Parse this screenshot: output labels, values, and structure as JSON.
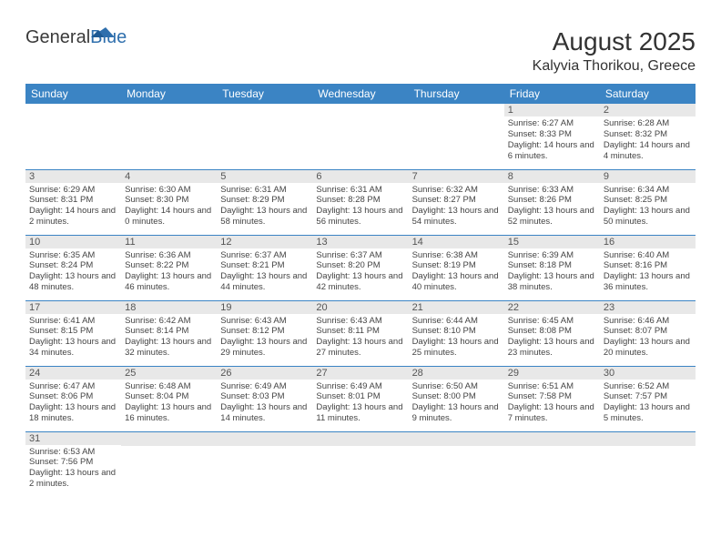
{
  "logo": {
    "part1": "General",
    "part2": "Blue"
  },
  "title": "August 2025",
  "location": "Kalyvia Thorikou, Greece",
  "header_bg": "#3b84c4",
  "header_fg": "#ffffff",
  "daynum_bg": "#e8e8e8",
  "border_color": "#3b84c4",
  "weekdays": [
    "Sunday",
    "Monday",
    "Tuesday",
    "Wednesday",
    "Thursday",
    "Friday",
    "Saturday"
  ],
  "weeks": [
    [
      {
        "n": "",
        "sr": "",
        "ss": "",
        "dl": ""
      },
      {
        "n": "",
        "sr": "",
        "ss": "",
        "dl": ""
      },
      {
        "n": "",
        "sr": "",
        "ss": "",
        "dl": ""
      },
      {
        "n": "",
        "sr": "",
        "ss": "",
        "dl": ""
      },
      {
        "n": "",
        "sr": "",
        "ss": "",
        "dl": ""
      },
      {
        "n": "1",
        "sr": "Sunrise: 6:27 AM",
        "ss": "Sunset: 8:33 PM",
        "dl": "Daylight: 14 hours and 6 minutes."
      },
      {
        "n": "2",
        "sr": "Sunrise: 6:28 AM",
        "ss": "Sunset: 8:32 PM",
        "dl": "Daylight: 14 hours and 4 minutes."
      }
    ],
    [
      {
        "n": "3",
        "sr": "Sunrise: 6:29 AM",
        "ss": "Sunset: 8:31 PM",
        "dl": "Daylight: 14 hours and 2 minutes."
      },
      {
        "n": "4",
        "sr": "Sunrise: 6:30 AM",
        "ss": "Sunset: 8:30 PM",
        "dl": "Daylight: 14 hours and 0 minutes."
      },
      {
        "n": "5",
        "sr": "Sunrise: 6:31 AM",
        "ss": "Sunset: 8:29 PM",
        "dl": "Daylight: 13 hours and 58 minutes."
      },
      {
        "n": "6",
        "sr": "Sunrise: 6:31 AM",
        "ss": "Sunset: 8:28 PM",
        "dl": "Daylight: 13 hours and 56 minutes."
      },
      {
        "n": "7",
        "sr": "Sunrise: 6:32 AM",
        "ss": "Sunset: 8:27 PM",
        "dl": "Daylight: 13 hours and 54 minutes."
      },
      {
        "n": "8",
        "sr": "Sunrise: 6:33 AM",
        "ss": "Sunset: 8:26 PM",
        "dl": "Daylight: 13 hours and 52 minutes."
      },
      {
        "n": "9",
        "sr": "Sunrise: 6:34 AM",
        "ss": "Sunset: 8:25 PM",
        "dl": "Daylight: 13 hours and 50 minutes."
      }
    ],
    [
      {
        "n": "10",
        "sr": "Sunrise: 6:35 AM",
        "ss": "Sunset: 8:24 PM",
        "dl": "Daylight: 13 hours and 48 minutes."
      },
      {
        "n": "11",
        "sr": "Sunrise: 6:36 AM",
        "ss": "Sunset: 8:22 PM",
        "dl": "Daylight: 13 hours and 46 minutes."
      },
      {
        "n": "12",
        "sr": "Sunrise: 6:37 AM",
        "ss": "Sunset: 8:21 PM",
        "dl": "Daylight: 13 hours and 44 minutes."
      },
      {
        "n": "13",
        "sr": "Sunrise: 6:37 AM",
        "ss": "Sunset: 8:20 PM",
        "dl": "Daylight: 13 hours and 42 minutes."
      },
      {
        "n": "14",
        "sr": "Sunrise: 6:38 AM",
        "ss": "Sunset: 8:19 PM",
        "dl": "Daylight: 13 hours and 40 minutes."
      },
      {
        "n": "15",
        "sr": "Sunrise: 6:39 AM",
        "ss": "Sunset: 8:18 PM",
        "dl": "Daylight: 13 hours and 38 minutes."
      },
      {
        "n": "16",
        "sr": "Sunrise: 6:40 AM",
        "ss": "Sunset: 8:16 PM",
        "dl": "Daylight: 13 hours and 36 minutes."
      }
    ],
    [
      {
        "n": "17",
        "sr": "Sunrise: 6:41 AM",
        "ss": "Sunset: 8:15 PM",
        "dl": "Daylight: 13 hours and 34 minutes."
      },
      {
        "n": "18",
        "sr": "Sunrise: 6:42 AM",
        "ss": "Sunset: 8:14 PM",
        "dl": "Daylight: 13 hours and 32 minutes."
      },
      {
        "n": "19",
        "sr": "Sunrise: 6:43 AM",
        "ss": "Sunset: 8:12 PM",
        "dl": "Daylight: 13 hours and 29 minutes."
      },
      {
        "n": "20",
        "sr": "Sunrise: 6:43 AM",
        "ss": "Sunset: 8:11 PM",
        "dl": "Daylight: 13 hours and 27 minutes."
      },
      {
        "n": "21",
        "sr": "Sunrise: 6:44 AM",
        "ss": "Sunset: 8:10 PM",
        "dl": "Daylight: 13 hours and 25 minutes."
      },
      {
        "n": "22",
        "sr": "Sunrise: 6:45 AM",
        "ss": "Sunset: 8:08 PM",
        "dl": "Daylight: 13 hours and 23 minutes."
      },
      {
        "n": "23",
        "sr": "Sunrise: 6:46 AM",
        "ss": "Sunset: 8:07 PM",
        "dl": "Daylight: 13 hours and 20 minutes."
      }
    ],
    [
      {
        "n": "24",
        "sr": "Sunrise: 6:47 AM",
        "ss": "Sunset: 8:06 PM",
        "dl": "Daylight: 13 hours and 18 minutes."
      },
      {
        "n": "25",
        "sr": "Sunrise: 6:48 AM",
        "ss": "Sunset: 8:04 PM",
        "dl": "Daylight: 13 hours and 16 minutes."
      },
      {
        "n": "26",
        "sr": "Sunrise: 6:49 AM",
        "ss": "Sunset: 8:03 PM",
        "dl": "Daylight: 13 hours and 14 minutes."
      },
      {
        "n": "27",
        "sr": "Sunrise: 6:49 AM",
        "ss": "Sunset: 8:01 PM",
        "dl": "Daylight: 13 hours and 11 minutes."
      },
      {
        "n": "28",
        "sr": "Sunrise: 6:50 AM",
        "ss": "Sunset: 8:00 PM",
        "dl": "Daylight: 13 hours and 9 minutes."
      },
      {
        "n": "29",
        "sr": "Sunrise: 6:51 AM",
        "ss": "Sunset: 7:58 PM",
        "dl": "Daylight: 13 hours and 7 minutes."
      },
      {
        "n": "30",
        "sr": "Sunrise: 6:52 AM",
        "ss": "Sunset: 7:57 PM",
        "dl": "Daylight: 13 hours and 5 minutes."
      }
    ],
    [
      {
        "n": "31",
        "sr": "Sunrise: 6:53 AM",
        "ss": "Sunset: 7:56 PM",
        "dl": "Daylight: 13 hours and 2 minutes."
      },
      {
        "n": "",
        "sr": "",
        "ss": "",
        "dl": ""
      },
      {
        "n": "",
        "sr": "",
        "ss": "",
        "dl": ""
      },
      {
        "n": "",
        "sr": "",
        "ss": "",
        "dl": ""
      },
      {
        "n": "",
        "sr": "",
        "ss": "",
        "dl": ""
      },
      {
        "n": "",
        "sr": "",
        "ss": "",
        "dl": ""
      },
      {
        "n": "",
        "sr": "",
        "ss": "",
        "dl": ""
      }
    ]
  ]
}
